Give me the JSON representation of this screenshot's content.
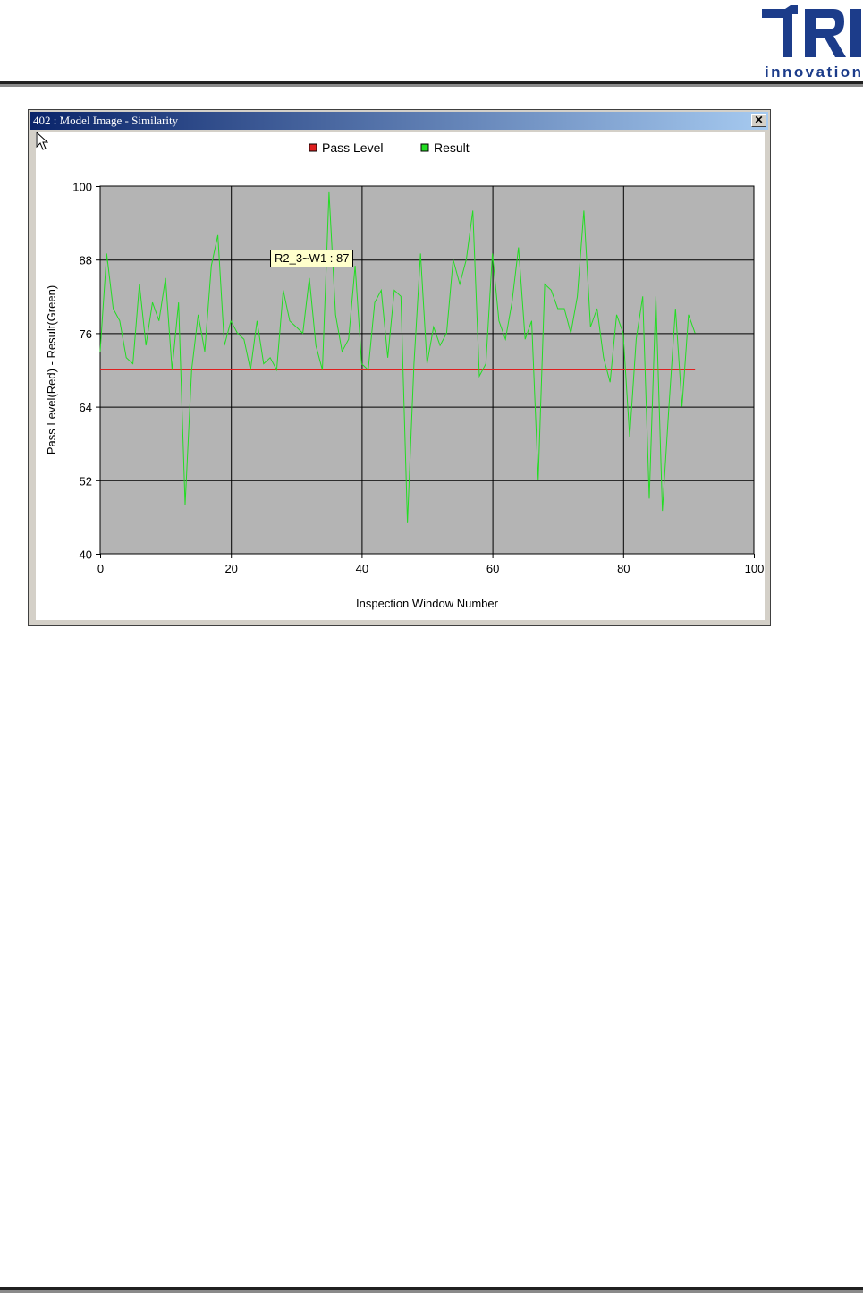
{
  "logo": {
    "letters": "TRI",
    "word": "innovation"
  },
  "window": {
    "title": "402 : Model Image - Similarity",
    "close_label": "✕"
  },
  "tooltip": {
    "text": "R2_3~W1 : 87"
  },
  "colors": {
    "pass": "#e02020",
    "result": "#22dd22",
    "plot_bg": "#b4b4b4"
  },
  "chart_data": {
    "type": "line",
    "xlabel": "Inspection Window Number",
    "ylabel": "Pass Level(Red) - Result(Green)",
    "xlim": [
      0,
      100
    ],
    "ylim": [
      40,
      100
    ],
    "xticks": [
      0,
      20,
      40,
      60,
      80,
      100
    ],
    "yticks": [
      40,
      52,
      64,
      76,
      88,
      100
    ],
    "grid": true,
    "legend_position": "top-center",
    "series": [
      {
        "name": "Pass Level",
        "color": "#e02020",
        "x": [
          0,
          91
        ],
        "y": [
          70,
          70
        ]
      },
      {
        "name": "Result",
        "color": "#22dd22",
        "y": [
          73,
          89,
          80,
          78,
          72,
          71,
          84,
          74,
          81,
          78,
          85,
          70,
          81,
          48,
          70,
          79,
          73,
          87,
          92,
          74,
          78,
          76,
          75,
          70,
          78,
          71,
          72,
          70,
          83,
          78,
          77,
          76,
          85,
          74,
          70,
          99,
          79,
          73,
          75,
          87,
          71,
          70,
          81,
          83,
          72,
          83,
          82,
          45,
          71,
          89,
          71,
          77,
          74,
          76,
          88,
          84,
          88,
          96,
          69,
          71,
          89,
          78,
          75,
          81,
          90,
          75,
          78,
          52,
          84,
          83,
          80,
          80,
          76,
          82,
          96,
          77,
          80,
          72,
          68,
          79,
          76,
          59,
          75,
          82,
          49,
          82,
          47,
          64,
          80,
          64,
          79,
          76
        ]
      }
    ]
  }
}
